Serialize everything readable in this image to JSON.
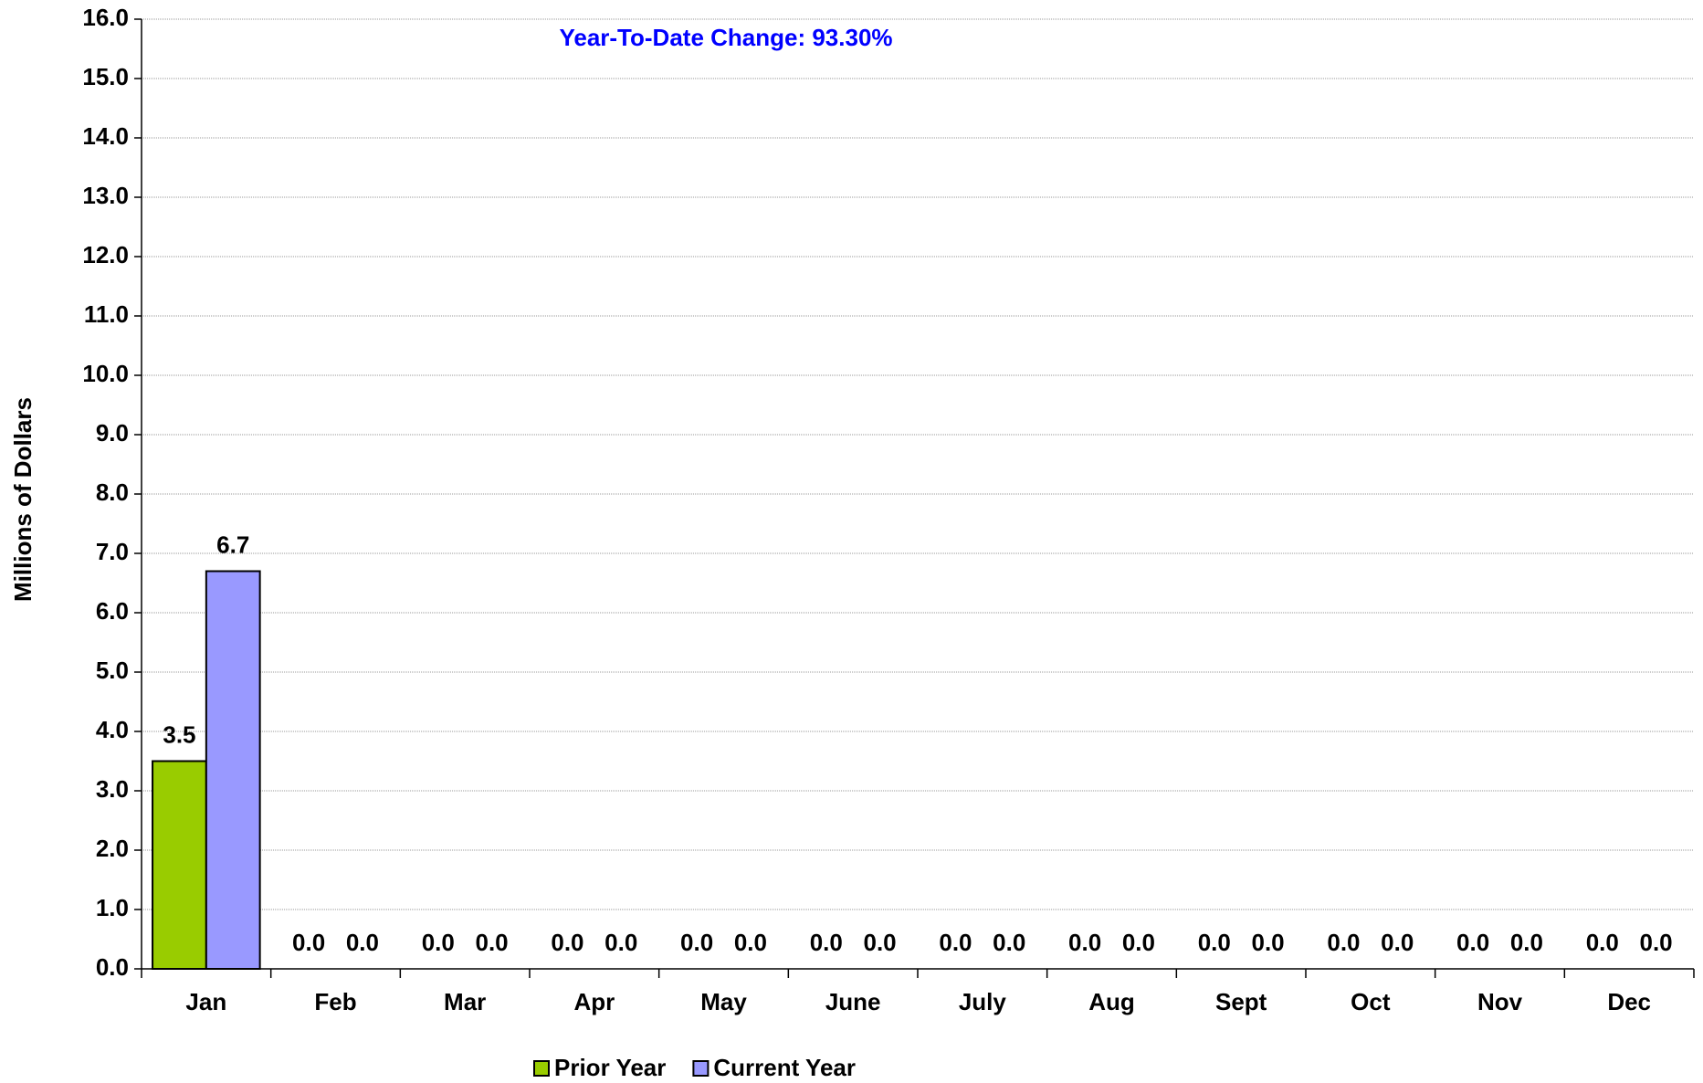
{
  "chart_data": {
    "type": "bar",
    "annotation": "Year-To-Date Change: 93.30%",
    "y_label": "Millions of Dollars",
    "categories": [
      "Jan",
      "Feb",
      "Mar",
      "Apr",
      "May",
      "June",
      "July",
      "Aug",
      "Sept",
      "Oct",
      "Nov",
      "Dec"
    ],
    "series": [
      {
        "name": "Prior Year",
        "color": "#99cc00",
        "values": [
          3.5,
          0,
          0,
          0,
          0,
          0,
          0,
          0,
          0,
          0,
          0,
          0
        ],
        "value_labels": [
          "3.5",
          "0.0",
          "0.0",
          "0.0",
          "0.0",
          "0.0",
          "0.0",
          "0.0",
          "0.0",
          "0.0",
          "0.0",
          "0.0"
        ]
      },
      {
        "name": "Current Year",
        "color": "#9999ff",
        "values": [
          6.7,
          0,
          0,
          0,
          0,
          0,
          0,
          0,
          0,
          0,
          0,
          0
        ],
        "value_labels": [
          "6.7",
          "0.0",
          "0.0",
          "0.0",
          "0.0",
          "0.0",
          "0.0",
          "0.0",
          "0.0",
          "0.0",
          "0.0",
          "0.0"
        ]
      }
    ],
    "ylim": [
      0,
      16
    ],
    "yticks": [
      {
        "value": 0,
        "label": "0.0"
      },
      {
        "value": 1,
        "label": "1.0"
      },
      {
        "value": 2,
        "label": "2.0"
      },
      {
        "value": 3,
        "label": "3.0"
      },
      {
        "value": 4,
        "label": "4.0"
      },
      {
        "value": 5,
        "label": "5.0"
      },
      {
        "value": 6,
        "label": "6.0"
      },
      {
        "value": 7,
        "label": "7.0"
      },
      {
        "value": 8,
        "label": "8.0"
      },
      {
        "value": 9,
        "label": "9.0"
      },
      {
        "value": 10,
        "label": "10.0"
      },
      {
        "value": 11,
        "label": "11.0"
      },
      {
        "value": 12,
        "label": "12.0"
      },
      {
        "value": 13,
        "label": "13.0"
      },
      {
        "value": 14,
        "label": "14.0"
      },
      {
        "value": 15,
        "label": "15.0"
      },
      {
        "value": 16,
        "label": "16.0"
      }
    ],
    "grid": true,
    "legend": "bottom"
  }
}
